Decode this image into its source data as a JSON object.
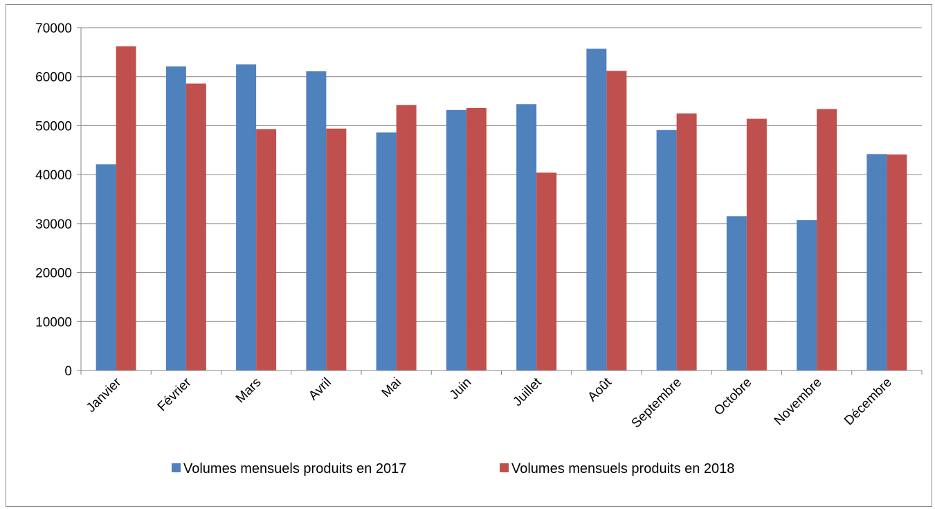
{
  "chart_data": {
    "type": "bar",
    "categories": [
      "Janvier",
      "Février",
      "Mars",
      "Avril",
      "Mai",
      "Juin",
      "Juillet",
      "Août",
      "Septembre",
      "Octobre",
      "Novembre",
      "Décembre"
    ],
    "series": [
      {
        "name": "Volumes mensuels produits en 2017",
        "color": "#4F81BD",
        "values": [
          42100,
          62100,
          62500,
          61100,
          48600,
          53200,
          54400,
          65700,
          49100,
          31500,
          30700,
          44200
        ]
      },
      {
        "name": "Volumes mensuels produits en 2018",
        "color": "#C0504D",
        "values": [
          66200,
          58600,
          49300,
          49400,
          54200,
          53600,
          40400,
          61200,
          52500,
          51400,
          53400,
          44100
        ]
      }
    ],
    "y_ticks": [
      "0",
      "10000",
      "20000",
      "30000",
      "40000",
      "50000",
      "60000",
      "70000"
    ],
    "ylim": [
      0,
      70000
    ],
    "grid": true,
    "legend_position": "bottom"
  }
}
